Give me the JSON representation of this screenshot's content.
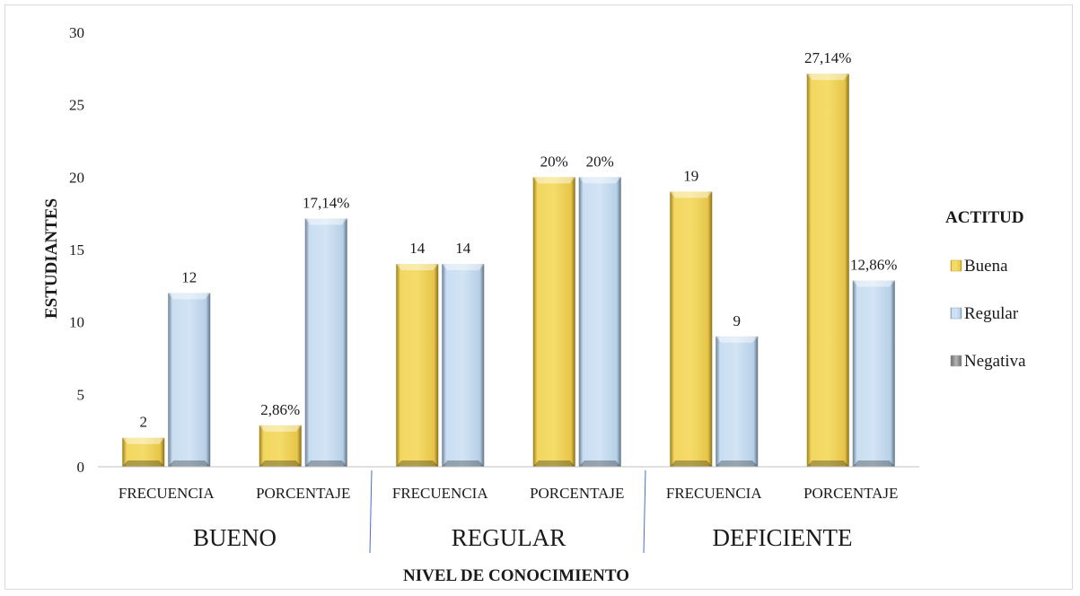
{
  "chart_data": {
    "type": "bar",
    "ylabel": "ESTUDIANTES",
    "xlabel": "NIVEL DE CONOCIMIENTO",
    "ylim": [
      0,
      30
    ],
    "yticks": [
      0,
      5,
      10,
      15,
      20,
      25,
      30
    ],
    "groups": [
      {
        "label": "BUENO",
        "categories": [
          "FRECUENCIA",
          "PORCENTAJE"
        ]
      },
      {
        "label": "REGULAR",
        "categories": [
          "FRECUENCIA",
          "PORCENTAJE"
        ]
      },
      {
        "label": "DEFICIENTE",
        "categories": [
          "FRECUENCIA",
          "PORCENTAJE"
        ]
      }
    ],
    "series": [
      {
        "name": "Buena",
        "color": "#e8c84a",
        "values": [
          2,
          2.86,
          14,
          20,
          19,
          27.14
        ],
        "labels": [
          "2",
          "2,86%",
          "14",
          "20%",
          "19",
          "27,14%"
        ]
      },
      {
        "name": "Regular",
        "color": "#bcd6ee",
        "values": [
          12,
          17.14,
          14,
          20,
          9,
          12.86
        ],
        "labels": [
          "12",
          "17,14%",
          "14",
          "20%",
          "9",
          "12,86%"
        ]
      },
      {
        "name": "Negativa",
        "color": "#a6a6a6",
        "values": [],
        "labels": []
      }
    ],
    "legend": {
      "title": "ACTITUD",
      "position": "right"
    },
    "grid": false
  }
}
